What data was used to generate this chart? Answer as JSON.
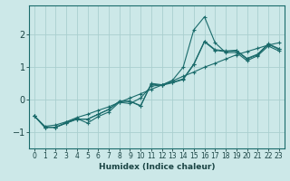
{
  "xlabel": "Humidex (Indice chaleur)",
  "bg_color": "#cce8e8",
  "line_color": "#1a6b6b",
  "grid_color": "#aacfcf",
  "xlim": [
    -0.5,
    23.5
  ],
  "ylim": [
    -1.5,
    2.9
  ],
  "xticks": [
    0,
    1,
    2,
    3,
    4,
    5,
    6,
    7,
    8,
    9,
    10,
    11,
    12,
    13,
    14,
    15,
    16,
    17,
    18,
    19,
    20,
    21,
    22,
    23
  ],
  "yticks": [
    -1,
    0,
    1,
    2
  ],
  "series": [
    {
      "x": [
        0,
        1,
        2,
        3,
        4,
        5,
        6,
        7,
        8,
        9,
        10,
        11,
        12,
        13,
        14,
        15,
        16,
        17,
        18,
        19,
        20,
        21,
        22,
        23
      ],
      "y": [
        -0.5,
        -0.85,
        -0.85,
        -0.7,
        -0.58,
        -0.72,
        -0.52,
        -0.38,
        -0.08,
        -0.12,
        0.05,
        0.42,
        0.45,
        0.6,
        1.0,
        2.15,
        2.55,
        1.75,
        1.45,
        1.45,
        1.2,
        1.35,
        1.65,
        1.5
      ]
    },
    {
      "x": [
        0,
        1,
        2,
        3,
        4,
        5,
        6,
        7,
        8,
        9,
        10,
        11,
        12,
        13,
        14,
        15,
        16,
        17,
        18,
        19,
        20,
        21,
        22,
        23
      ],
      "y": [
        -0.5,
        -0.82,
        -0.78,
        -0.68,
        -0.55,
        -0.45,
        -0.33,
        -0.22,
        -0.08,
        0.05,
        0.18,
        0.32,
        0.45,
        0.58,
        0.72,
        0.85,
        1.0,
        1.12,
        1.25,
        1.38,
        1.48,
        1.58,
        1.68,
        1.75
      ]
    },
    {
      "x": [
        0,
        1,
        2,
        3,
        4,
        5,
        6,
        7,
        8,
        9,
        10,
        11,
        12,
        13,
        14,
        15,
        16,
        17,
        18,
        19,
        20,
        21,
        22,
        23
      ],
      "y": [
        -0.5,
        -0.85,
        -0.85,
        -0.72,
        -0.6,
        -0.6,
        -0.45,
        -0.3,
        -0.05,
        -0.05,
        -0.18,
        0.48,
        0.44,
        0.52,
        0.62,
        1.08,
        1.78,
        1.52,
        1.48,
        1.5,
        1.25,
        1.38,
        1.7,
        1.55
      ]
    },
    {
      "x": [
        0,
        1,
        2,
        3,
        4,
        5,
        6,
        7,
        8,
        9,
        10,
        11,
        12,
        13,
        14,
        15,
        16,
        17,
        18,
        19,
        20,
        21,
        22,
        23
      ],
      "y": [
        -0.5,
        -0.85,
        -0.85,
        -0.72,
        -0.6,
        -0.6,
        -0.45,
        -0.3,
        -0.05,
        -0.05,
        -0.2,
        0.5,
        0.46,
        0.54,
        0.64,
        1.1,
        1.8,
        1.54,
        1.5,
        1.52,
        1.27,
        1.4,
        1.72,
        1.57
      ]
    }
  ]
}
